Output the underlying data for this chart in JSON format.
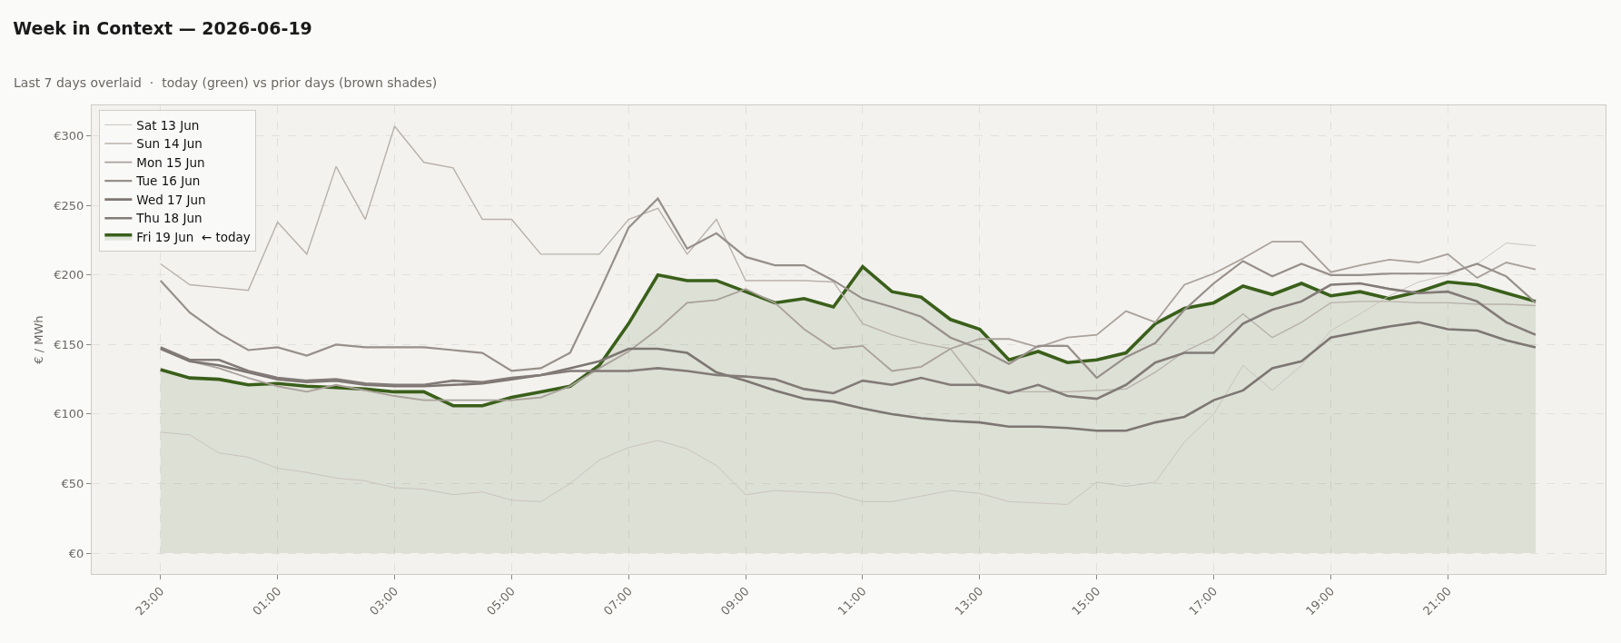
{
  "chart_data": {
    "type": "line",
    "title": "Week in Context — 2026-06-19",
    "subtitle": "Last 7 days overlaid  ·  today (green) vs prior days (brown shades)",
    "ylabel": "€ / MWh",
    "categories": [
      "23:00",
      null,
      null,
      null,
      "01:00",
      null,
      null,
      null,
      "03:00",
      null,
      null,
      null,
      "05:00",
      null,
      null,
      null,
      "07:00",
      null,
      null,
      null,
      "09:00",
      null,
      null,
      null,
      "11:00",
      null,
      null,
      null,
      "13:00",
      null,
      null,
      null,
      "15:00",
      null,
      null,
      null,
      "17:00",
      null,
      null,
      null,
      "19:00",
      null,
      null,
      null,
      "21:00",
      null,
      null,
      null
    ],
    "ylim": [
      -15,
      322
    ],
    "yticks": [
      {
        "value": 0,
        "label": "€0"
      },
      {
        "value": 50,
        "label": "€50"
      },
      {
        "value": 100,
        "label": "€100"
      },
      {
        "value": 150,
        "label": "€150"
      },
      {
        "value": 200,
        "label": "€200"
      },
      {
        "value": 250,
        "label": "€250"
      },
      {
        "value": 300,
        "label": "€300"
      }
    ],
    "grid": true,
    "legend": "top left",
    "line_style": "solid",
    "marker": "none",
    "series": [
      {
        "name": "Sat 13 Jun",
        "color": "#cbc4bf",
        "values": [
          87,
          85,
          72,
          69,
          61,
          58,
          54,
          52,
          47,
          46,
          42,
          44,
          38,
          37,
          50,
          67,
          76,
          81,
          75,
          63,
          42,
          45,
          44,
          43,
          37,
          37,
          41,
          45,
          43,
          37,
          36,
          35,
          51,
          48,
          51,
          80,
          100,
          135,
          117,
          135,
          160,
          172,
          185,
          195,
          200,
          208,
          223,
          221
        ]
      },
      {
        "name": "Sun 14 Jun",
        "color": "#b9b1ab",
        "values": [
          208,
          193,
          191,
          189,
          238,
          215,
          278,
          240,
          307,
          281,
          277,
          240,
          240,
          215,
          215,
          215,
          240,
          248,
          215,
          240,
          196,
          196,
          196,
          195,
          165,
          157,
          151,
          147,
          120,
          116,
          116,
          116,
          117,
          118,
          130,
          145,
          155,
          172,
          155,
          166,
          180,
          181,
          181,
          180,
          180,
          179,
          179,
          178
        ]
      },
      {
        "name": "Mon 15 Jun",
        "color": "#aaa19b",
        "values": [
          147,
          138,
          133,
          126,
          120,
          116,
          121,
          117,
          113,
          110,
          110,
          110,
          110,
          112,
          120,
          133,
          145,
          161,
          180,
          182,
          190,
          180,
          161,
          147,
          149,
          131,
          134,
          147,
          154,
          154,
          148,
          155,
          157,
          174,
          166,
          193,
          201,
          212,
          224,
          224,
          202,
          207,
          211,
          209,
          215,
          198,
          209,
          204
        ]
      },
      {
        "name": "Tue 16 Jun",
        "color": "#978f8a",
        "values": [
          196,
          173,
          158,
          146,
          148,
          142,
          150,
          148,
          148,
          148,
          146,
          144,
          131,
          133,
          144,
          188,
          234,
          255,
          219,
          230,
          213,
          207,
          207,
          196,
          183,
          177,
          170,
          155,
          147,
          136,
          149,
          149,
          126,
          141,
          151,
          175,
          194,
          210,
          199,
          208,
          200,
          200,
          201,
          201,
          201,
          208,
          199,
          180
        ]
      },
      {
        "name": "Wed 17 Jun",
        "color": "#7d7672",
        "values": [
          147,
          138,
          135,
          130,
          125,
          123,
          124,
          121,
          120,
          120,
          121,
          122,
          125,
          128,
          133,
          138,
          147,
          147,
          144,
          130,
          124,
          117,
          111,
          109,
          104,
          100,
          97,
          95,
          94,
          91,
          91,
          90,
          88,
          88,
          94,
          98,
          110,
          117,
          133,
          138,
          155,
          159,
          163,
          166,
          161,
          160,
          153,
          148
        ]
      },
      {
        "name": "Thu 18 Jun",
        "color": "#837b77",
        "values": [
          148,
          139,
          139,
          131,
          126,
          124,
          125,
          122,
          121,
          121,
          124,
          123,
          126,
          128,
          131,
          131,
          131,
          133,
          131,
          128,
          127,
          125,
          118,
          115,
          124,
          121,
          126,
          121,
          121,
          115,
          121,
          113,
          111,
          121,
          137,
          144,
          144,
          165,
          175,
          181,
          193,
          194,
          190,
          187,
          188,
          181,
          166,
          157
        ]
      },
      {
        "name": "Fri 19 Jun  ← today",
        "type": "area",
        "color": "#3a5f1a",
        "values": [
          132,
          126,
          125,
          121,
          122,
          120,
          119,
          118,
          116,
          116,
          106,
          106,
          112,
          116,
          120,
          135,
          165,
          200,
          196,
          196,
          188,
          180,
          183,
          177,
          206,
          188,
          184,
          168,
          161,
          139,
          145,
          137,
          139,
          144,
          165,
          176,
          180,
          192,
          186,
          194,
          185,
          188,
          183,
          188,
          195,
          193,
          187,
          181
        ]
      }
    ]
  }
}
